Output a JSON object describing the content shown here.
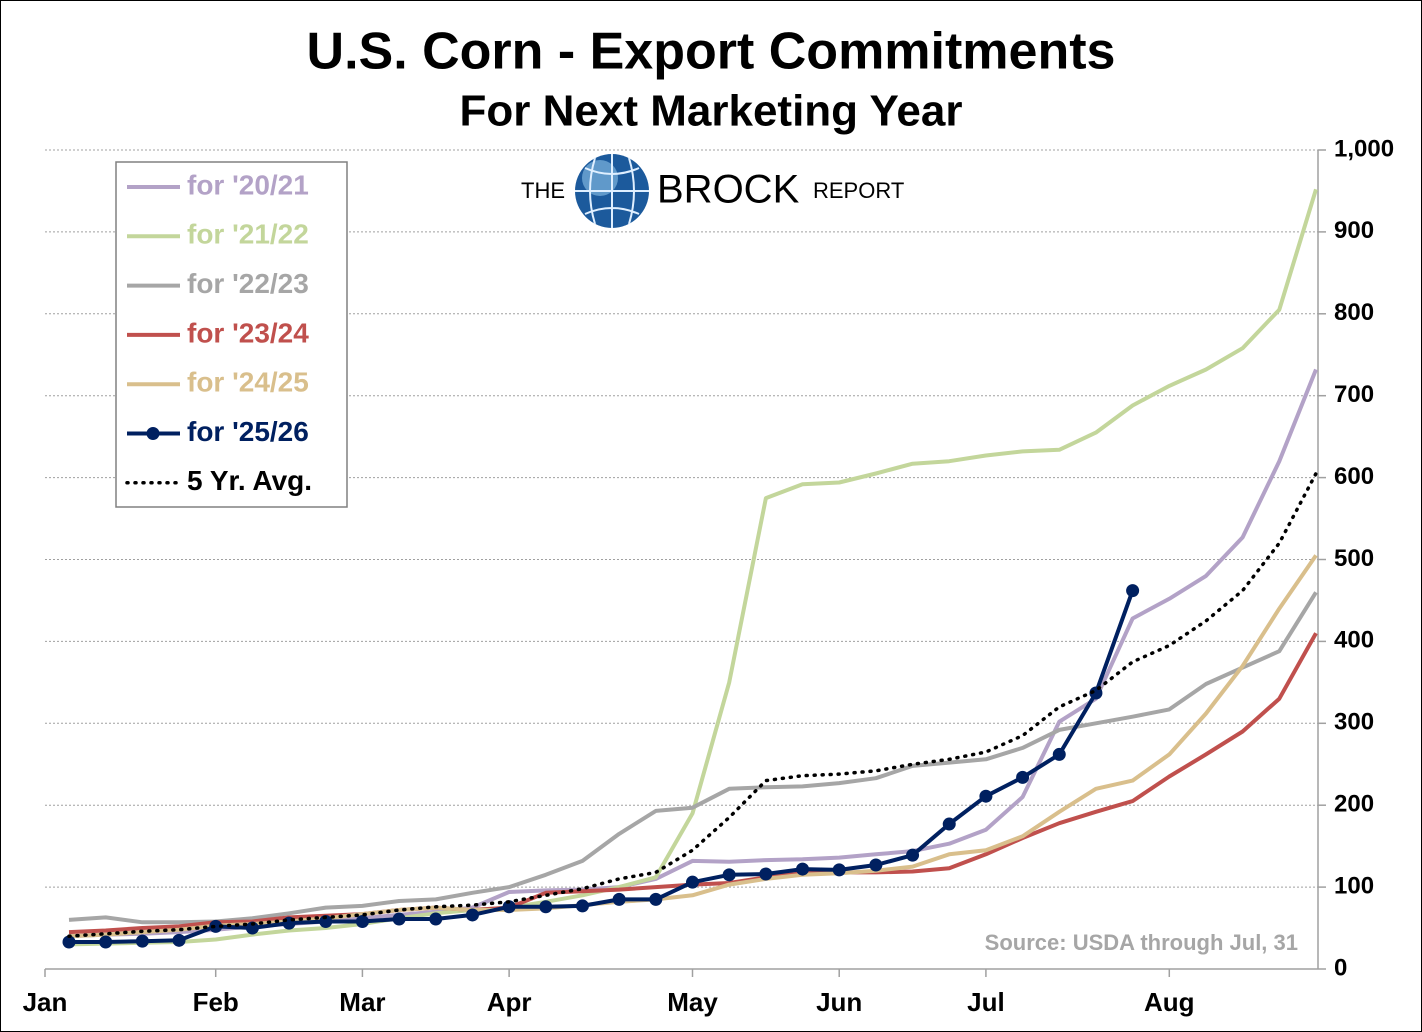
{
  "chart_data": {
    "type": "line",
    "title": "U.S. Corn - Export Commitments",
    "subtitle": "For Next Marketing Year",
    "logo": {
      "the": "THE",
      "brock": "BROCK",
      "report": "REPORT"
    },
    "annotation": "Source: USDA through Jul, 31",
    "categories": [
      null,
      null,
      null,
      null,
      "Feb",
      null,
      null,
      null,
      "Mar",
      null,
      null,
      null,
      "Apr",
      null,
      null,
      null,
      null,
      "May",
      null,
      null,
      null,
      "Jun",
      null,
      null,
      null,
      "Jul",
      null,
      null,
      null,
      null,
      "Aug",
      null,
      null,
      null,
      null
    ],
    "first_label": "Jan",
    "ylim": [
      0,
      1000
    ],
    "yticks": [
      0,
      100,
      200,
      300,
      400,
      500,
      600,
      700,
      800,
      900,
      {
        "value": 1000,
        "label": "1,000"
      }
    ],
    "grid": true,
    "legend": "upper left",
    "series": [
      {
        "name": "for '20/21",
        "color": "#b3a2c7",
        "values": [
          40,
          42,
          43,
          45,
          48,
          52,
          55,
          58,
          62,
          66,
          70,
          75,
          94,
          96,
          97,
          100,
          110,
          132,
          131,
          133,
          134,
          136,
          140,
          144,
          153,
          170,
          210,
          302,
          330,
          428,
          452,
          480,
          527,
          620,
          732
        ]
      },
      {
        "name": "for '21/22",
        "color": "#c3d69b",
        "values": [
          30,
          31,
          32,
          33,
          36,
          42,
          47,
          50,
          55,
          62,
          68,
          72,
          75,
          82,
          90,
          100,
          112,
          190,
          350,
          575,
          592,
          594,
          605,
          617,
          620,
          627,
          632,
          634,
          655,
          688,
          712,
          732,
          758,
          805,
          952
        ]
      },
      {
        "name": "for '22/23",
        "color": "#a6a6a6",
        "values": [
          60,
          63,
          57,
          57,
          58,
          62,
          68,
          75,
          77,
          83,
          85,
          93,
          100,
          115,
          132,
          165,
          193,
          197,
          220,
          222,
          223,
          227,
          233,
          248,
          252,
          256,
          270,
          292,
          300,
          308,
          317,
          348,
          368,
          388,
          460
        ]
      },
      {
        "name": "for '23/24",
        "color": "#c0504d",
        "values": [
          45,
          47,
          50,
          52,
          57,
          58,
          63,
          65,
          67,
          72,
          75,
          72,
          75,
          93,
          95,
          97,
          100,
          103,
          105,
          112,
          117,
          118,
          118,
          119,
          123,
          140,
          160,
          178,
          192,
          205,
          235,
          262,
          290,
          330,
          410
        ]
      },
      {
        "name": "for '24/25",
        "color": "#d9bf8c",
        "values": [
          40,
          42,
          45,
          48,
          53,
          55,
          58,
          62,
          67,
          72,
          75,
          72,
          72,
          74,
          78,
          82,
          85,
          90,
          103,
          110,
          115,
          117,
          120,
          125,
          140,
          145,
          162,
          192,
          220,
          230,
          262,
          312,
          370,
          440,
          505
        ]
      },
      {
        "name": "for '25/26",
        "color": "#002060",
        "marker": "circle",
        "values": [
          33,
          33,
          34,
          35,
          52,
          50,
          56,
          58,
          58,
          61,
          61,
          66,
          76,
          76,
          77,
          85,
          85,
          106,
          115,
          116,
          122,
          121,
          127,
          139,
          177,
          211,
          234,
          262,
          337,
          462,
          null,
          null,
          null,
          null,
          null
        ]
      },
      {
        "name": "5 Yr. Avg.",
        "color": "#000000",
        "style": "dotted",
        "values": [
          40,
          43,
          46,
          48,
          52,
          55,
          60,
          63,
          66,
          72,
          76,
          78,
          82,
          90,
          98,
          110,
          118,
          145,
          185,
          230,
          236,
          238,
          242,
          250,
          256,
          265,
          285,
          320,
          340,
          375,
          395,
          425,
          462,
          520,
          605
        ]
      }
    ]
  }
}
